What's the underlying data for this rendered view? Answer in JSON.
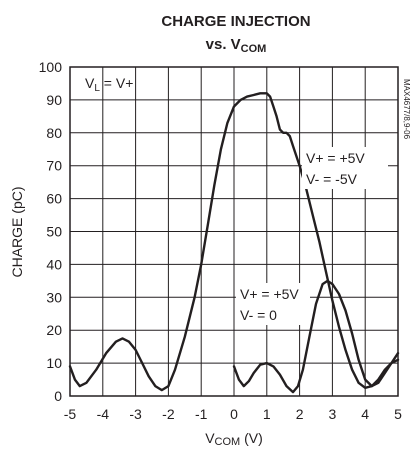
{
  "chart_data": {
    "type": "line",
    "title": "CHARGE INJECTION",
    "subtitle": {
      "prefix": "vs. V",
      "sub": "COM"
    },
    "xlabel": {
      "main": "V",
      "sub": "COM",
      "unit": " (V)"
    },
    "ylabel": "CHARGE (pC)",
    "xlim": [
      -5,
      5
    ],
    "ylim": [
      0,
      100
    ],
    "xticks": [
      -5,
      -4,
      -3,
      -2,
      -1,
      0,
      1,
      2,
      3,
      4,
      5
    ],
    "yticks": [
      0,
      10,
      20,
      30,
      40,
      50,
      60,
      70,
      80,
      90,
      100
    ],
    "grid": true,
    "figure_code": "MAX4677/8,9-06",
    "annotations": {
      "condition": {
        "main": "V",
        "sub": "L",
        "rest": " = V+"
      },
      "series_a_label": [
        "V+ = +5V",
        "V- = -5V"
      ],
      "series_b_label": [
        "V+ = +5V",
        "V- = 0"
      ]
    },
    "series": [
      {
        "x": [
          -5,
          -4.85,
          -4.7,
          -4.5,
          -4.2,
          -3.9,
          -3.6,
          -3.4,
          -3.2,
          -3,
          -2.8,
          -2.6,
          -2.4,
          -2.2,
          -2,
          -1.8,
          -1.5,
          -1.2,
          -1,
          -0.8,
          -0.6,
          -0.4,
          -0.2,
          0,
          0.2,
          0.4,
          0.6,
          0.8,
          1,
          1.1,
          1.2,
          1.3,
          1.4,
          1.5,
          1.6,
          1.7,
          1.8,
          2,
          2.2,
          2.4,
          2.6,
          2.8,
          3,
          3.2,
          3.4,
          3.6,
          3.8,
          4,
          4.2,
          4.4,
          4.6,
          4.8,
          5
        ],
        "values": [
          9,
          5,
          3,
          4,
          8,
          13,
          16.5,
          17.5,
          16.5,
          14,
          10,
          6,
          3,
          1.8,
          3,
          8,
          18,
          30,
          40,
          52,
          64,
          75,
          83,
          88,
          90,
          91,
          91.5,
          92,
          92,
          91,
          88,
          85,
          81,
          80,
          80,
          79,
          76,
          70,
          63,
          55,
          47,
          38,
          29,
          21,
          14,
          8,
          4,
          2.5,
          3,
          5,
          8,
          10,
          11
        ]
      },
      {
        "x": [
          0,
          0.15,
          0.3,
          0.45,
          0.6,
          0.8,
          1,
          1.2,
          1.4,
          1.6,
          1.8,
          1.95,
          2.1,
          2.3,
          2.5,
          2.7,
          2.85,
          3,
          3.2,
          3.4,
          3.6,
          3.8,
          4,
          4.2,
          4.4,
          4.6,
          4.8,
          5
        ],
        "values": [
          9,
          5,
          3,
          4.5,
          7,
          9.5,
          10,
          9,
          6.5,
          3,
          1.2,
          3,
          8,
          18,
          28,
          34,
          35,
          34,
          31,
          26,
          19,
          11,
          5,
          3,
          4,
          7,
          10,
          13
        ]
      }
    ]
  }
}
